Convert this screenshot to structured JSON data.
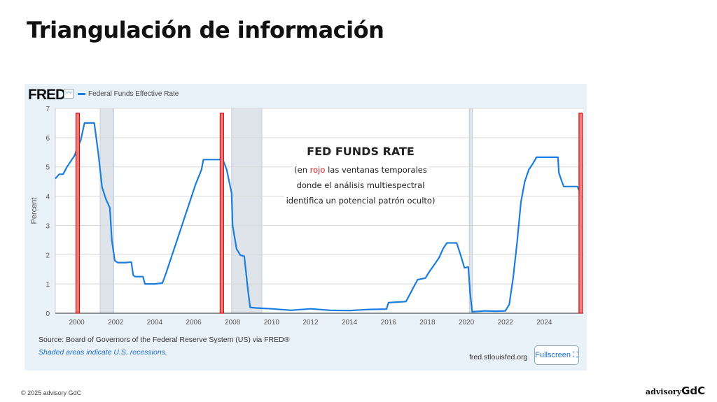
{
  "slide": {
    "title": "Triangulación de información",
    "copyright": "© 2025 advisory GdC",
    "brand_a": "advisory",
    "brand_b": "GdC"
  },
  "fred": {
    "logo": "FRED",
    "icon": "chart-line-icon",
    "legend": "Federal Funds Effective Rate",
    "source": "Source: Board of Governors of the Federal Reserve System (US) via FRED®",
    "shaded_note": "Shaded areas indicate U.S. recessions.",
    "site": "fred.stlouisfed.org",
    "fullscreen": "Fullscreen ⛶"
  },
  "overlay": {
    "title": "FED FUNDS RATE",
    "line1_pre": "(en ",
    "line1_red": "rojo",
    "line1_post": " las ventanas temporales",
    "line2": "donde el análisis multiespectral",
    "line3": "identifica un potencial patrón oculto)"
  },
  "chart_data": {
    "type": "line",
    "title": "Federal Funds Effective Rate",
    "xlabel": "",
    "ylabel": "Percent",
    "xlim": [
      1998.9,
      2026.0
    ],
    "ylim": [
      0,
      7
    ],
    "x_ticks": [
      2000,
      2002,
      2004,
      2006,
      2008,
      2010,
      2012,
      2014,
      2016,
      2018,
      2020,
      2022,
      2024
    ],
    "y_ticks": [
      0,
      1,
      2,
      3,
      4,
      5,
      6,
      7
    ],
    "line_color": "#1a7de0",
    "grid": true,
    "recessions": [
      [
        2001.2,
        2001.9
      ],
      [
        2007.95,
        2009.5
      ],
      [
        2020.15,
        2020.3
      ]
    ],
    "red_windows": [
      2000.05,
      2007.45,
      2025.87
    ],
    "series": [
      {
        "name": "Federal Funds Effective Rate",
        "points": [
          [
            1998.9,
            4.6
          ],
          [
            1999.1,
            4.75
          ],
          [
            1999.3,
            4.75
          ],
          [
            1999.5,
            5.0
          ],
          [
            1999.7,
            5.2
          ],
          [
            1999.9,
            5.4
          ],
          [
            2000.0,
            5.6
          ],
          [
            2000.2,
            5.9
          ],
          [
            2000.4,
            6.5
          ],
          [
            2000.6,
            6.5
          ],
          [
            2000.9,
            6.5
          ],
          [
            2001.0,
            6.0
          ],
          [
            2001.1,
            5.5
          ],
          [
            2001.3,
            4.3
          ],
          [
            2001.5,
            3.9
          ],
          [
            2001.7,
            3.6
          ],
          [
            2001.8,
            2.5
          ],
          [
            2001.95,
            1.8
          ],
          [
            2002.1,
            1.73
          ],
          [
            2002.5,
            1.73
          ],
          [
            2002.8,
            1.75
          ],
          [
            2002.9,
            1.3
          ],
          [
            2003.0,
            1.25
          ],
          [
            2003.4,
            1.25
          ],
          [
            2003.5,
            1.0
          ],
          [
            2004.0,
            1.0
          ],
          [
            2004.4,
            1.03
          ],
          [
            2004.6,
            1.4
          ],
          [
            2004.9,
            2.0
          ],
          [
            2005.2,
            2.6
          ],
          [
            2005.5,
            3.2
          ],
          [
            2005.8,
            3.8
          ],
          [
            2006.1,
            4.4
          ],
          [
            2006.4,
            4.9
          ],
          [
            2006.5,
            5.25
          ],
          [
            2007.5,
            5.25
          ],
          [
            2007.7,
            4.9
          ],
          [
            2007.95,
            4.1
          ],
          [
            2008.0,
            3.0
          ],
          [
            2008.2,
            2.2
          ],
          [
            2008.4,
            1.98
          ],
          [
            2008.6,
            1.95
          ],
          [
            2008.75,
            1.0
          ],
          [
            2008.9,
            0.2
          ],
          [
            2009.2,
            0.18
          ],
          [
            2010,
            0.15
          ],
          [
            2011,
            0.1
          ],
          [
            2012,
            0.15
          ],
          [
            2013,
            0.1
          ],
          [
            2014,
            0.09
          ],
          [
            2015,
            0.13
          ],
          [
            2015.9,
            0.14
          ],
          [
            2016.0,
            0.36
          ],
          [
            2016.9,
            0.4
          ],
          [
            2017.1,
            0.65
          ],
          [
            2017.3,
            0.9
          ],
          [
            2017.5,
            1.15
          ],
          [
            2017.9,
            1.2
          ],
          [
            2018.1,
            1.42
          ],
          [
            2018.4,
            1.7
          ],
          [
            2018.6,
            1.9
          ],
          [
            2018.8,
            2.2
          ],
          [
            2019.0,
            2.4
          ],
          [
            2019.5,
            2.4
          ],
          [
            2019.7,
            2.0
          ],
          [
            2019.9,
            1.55
          ],
          [
            2020.1,
            1.58
          ],
          [
            2020.2,
            0.65
          ],
          [
            2020.3,
            0.05
          ],
          [
            2021,
            0.08
          ],
          [
            2021.5,
            0.07
          ],
          [
            2022.0,
            0.08
          ],
          [
            2022.2,
            0.3
          ],
          [
            2022.4,
            1.2
          ],
          [
            2022.6,
            2.4
          ],
          [
            2022.8,
            3.8
          ],
          [
            2023.0,
            4.5
          ],
          [
            2023.2,
            4.9
          ],
          [
            2023.4,
            5.1
          ],
          [
            2023.6,
            5.33
          ],
          [
            2024.7,
            5.33
          ],
          [
            2024.75,
            4.8
          ],
          [
            2024.9,
            4.5
          ],
          [
            2025.0,
            4.33
          ],
          [
            2025.7,
            4.33
          ],
          [
            2025.85,
            4.1
          ]
        ]
      }
    ]
  }
}
